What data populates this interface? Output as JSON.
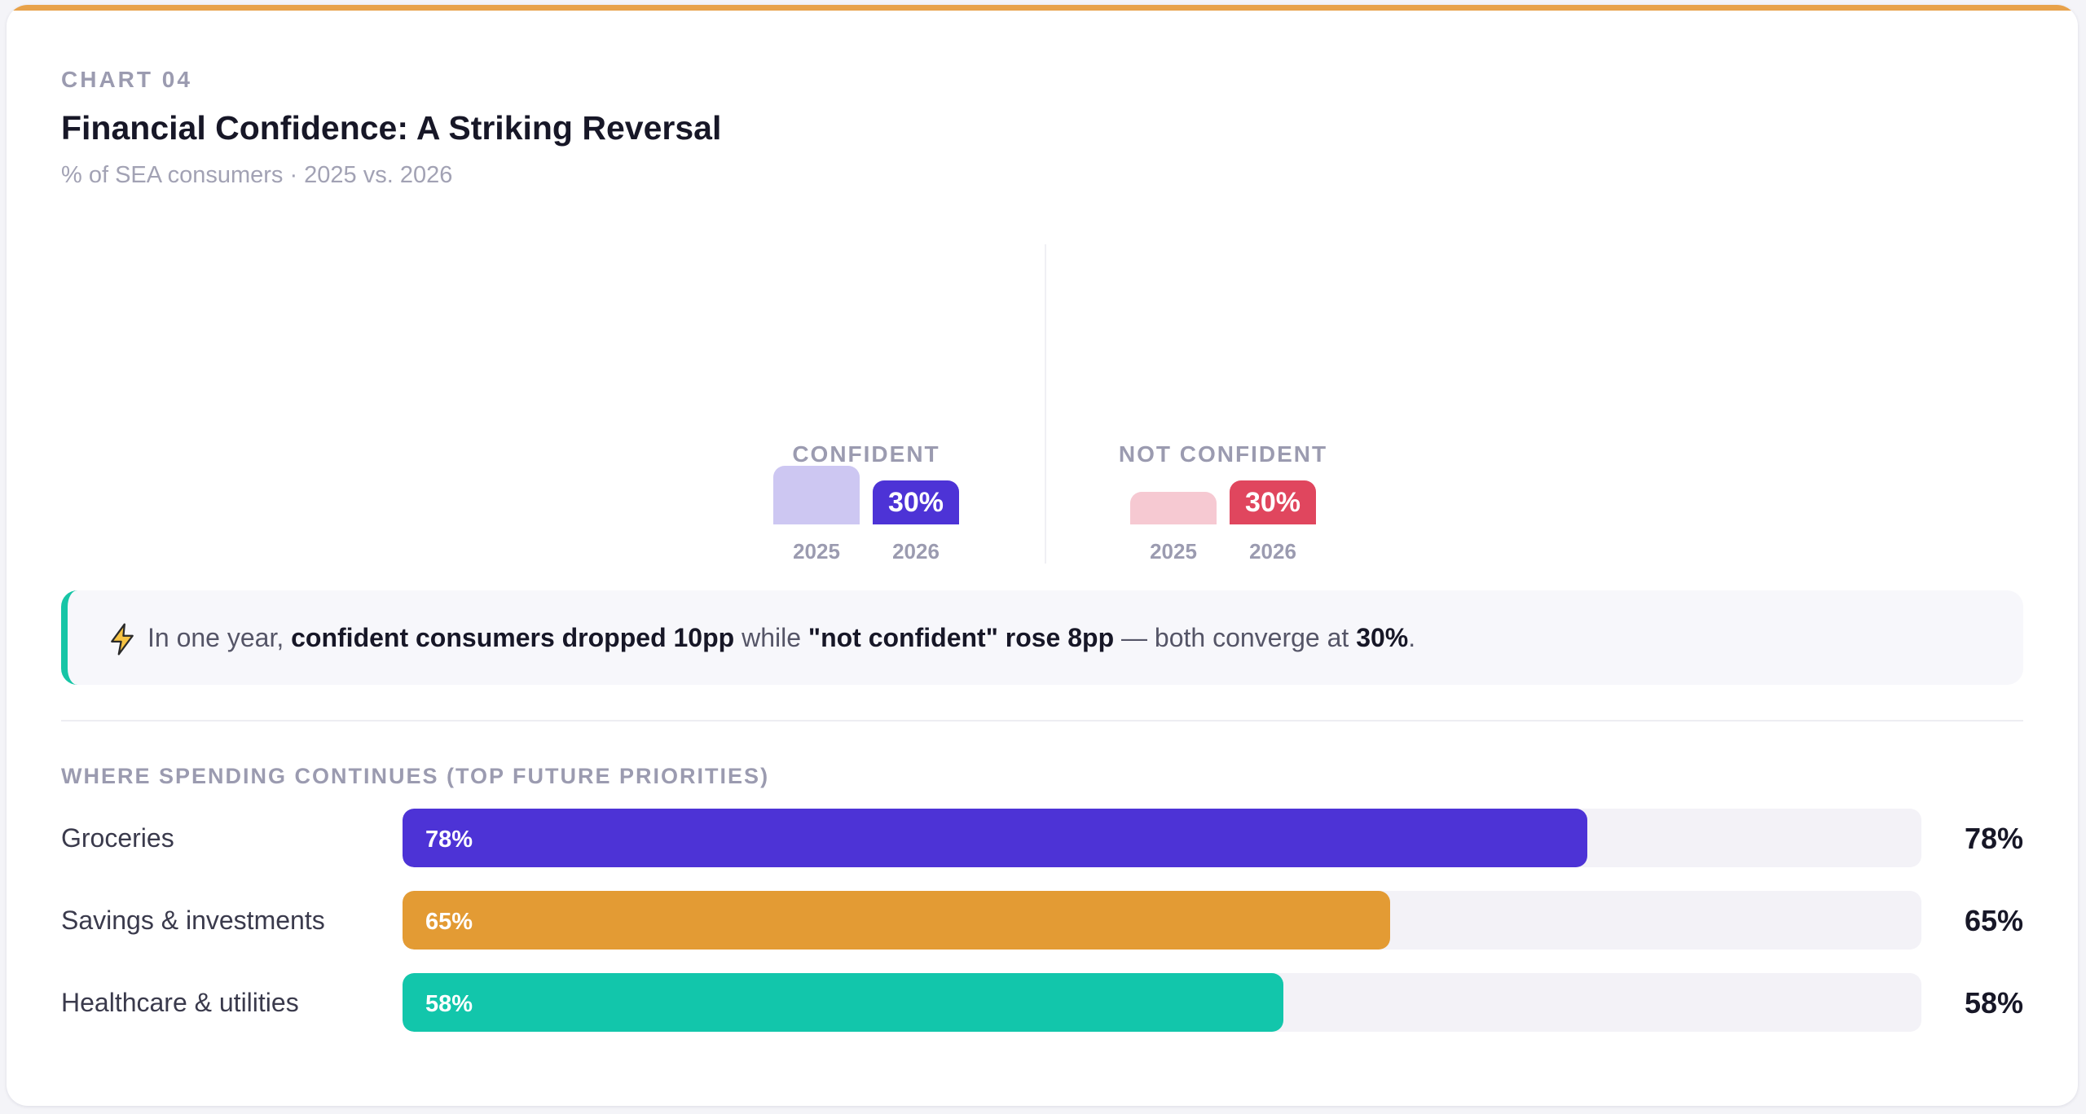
{
  "header": {
    "eyebrow": "CHART 04",
    "title": "Financial Confidence: A Striking Reversal",
    "subtitle": "% of SEA consumers · 2025 vs. 2026"
  },
  "chart_data": [
    {
      "type": "bar",
      "groups": [
        {
          "label": "CONFIDENT",
          "colors": [
            "#cdc7f2",
            "#4d33d6"
          ],
          "bars": [
            {
              "year": "2025",
              "value": 40,
              "label": ""
            },
            {
              "year": "2026",
              "value": 30,
              "label": "30%"
            }
          ]
        },
        {
          "label": "NOT CONFIDENT",
          "colors": [
            "#f6c9d2",
            "#e0465e"
          ],
          "bars": [
            {
              "year": "2025",
              "value": 22,
              "label": ""
            },
            {
              "year": "2026",
              "value": 30,
              "label": "30%"
            }
          ]
        }
      ]
    },
    {
      "type": "bar",
      "orientation": "horizontal",
      "title": "WHERE SPENDING CONTINUES (TOP FUTURE PRIORITIES)",
      "xlim": [
        0,
        100
      ],
      "items": [
        {
          "label": "Groceries",
          "value": 78,
          "display": "78%",
          "color": "#4d33d6"
        },
        {
          "label": "Savings & investments",
          "value": 65,
          "display": "65%",
          "color": "#e39b34"
        },
        {
          "label": "Healthcare & utilities",
          "value": 58,
          "display": "58%",
          "color": "#12c6ab"
        }
      ]
    }
  ],
  "callout": {
    "icon": "lightning-icon",
    "parts": [
      {
        "text": "In one year, ",
        "bold": false
      },
      {
        "text": "confident consumers dropped 10pp",
        "bold": true
      },
      {
        "text": " while ",
        "bold": false
      },
      {
        "text": "\"not confident\" rose 8pp",
        "bold": true
      },
      {
        "text": " — both converge at ",
        "bold": false
      },
      {
        "text": "30%",
        "bold": true
      },
      {
        "text": ".",
        "bold": false
      }
    ]
  }
}
